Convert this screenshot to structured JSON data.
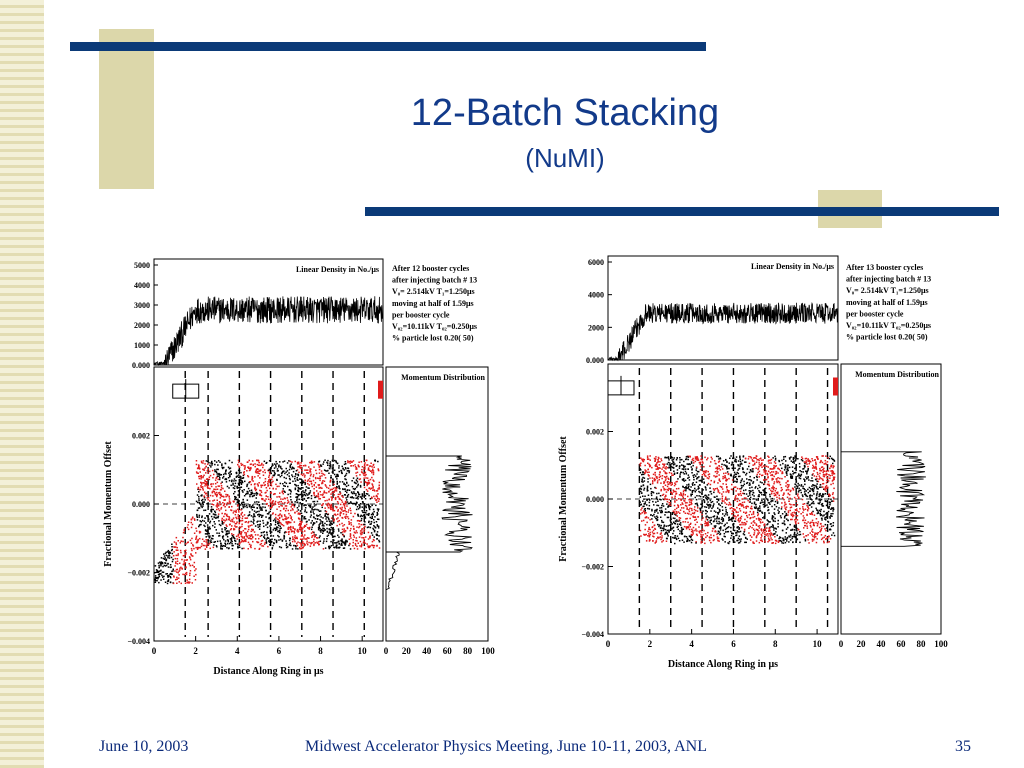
{
  "slide": {
    "title": "12-Batch Stacking",
    "subtitle": "(NuMI)",
    "footer_date": "June 10, 2003",
    "footer_event": "Midwest Accelerator Physics Meeting, June 10-11, 2003, ANL",
    "page_number": "35"
  },
  "colors": {
    "title": "#123a8a",
    "navy_bar": "#0b3a78",
    "accent_block": "#dcd7aa",
    "batch_red": "#e01b1b",
    "batch_black": "#000000"
  },
  "chart_data": [
    {
      "type": "scatter",
      "density_panel": {
        "label": "Linear Density in No./μs",
        "ylim": [
          0,
          5000
        ],
        "yticks": [
          "5000",
          "4000",
          "3000",
          "2000",
          "1000",
          "0.000"
        ],
        "profile": {
          "rise_start": 0.5,
          "rise_end": 2.0,
          "plateau": 2600,
          "noise": 800
        }
      },
      "info_text": [
        "After 12 booster cycles",
        "after injecting batch # 13",
        "V₀= 2.514kV  T₁=1.250μs",
        "moving at half of 1.59μs",
        "per booster cycle",
        "V₀₂=10.11kV  T₀₂=0.250μs",
        "% particle lost   0.20(   50)"
      ],
      "xlabel": "Distance Along Ring in μs",
      "ylabel": "Fractional Momentum Offset",
      "xlim": [
        0,
        11
      ],
      "ylim": [
        -0.004,
        0.004
      ],
      "xticks": [
        "0",
        "2",
        "4",
        "6",
        "8",
        "10"
      ],
      "yticks": [
        "0.002",
        "0.000",
        "−0.002",
        "−0.004"
      ],
      "dashed_lines_x": [
        1.5,
        2.6,
        4.1,
        5.6,
        7.1,
        8.6,
        10.1
      ],
      "scatter_region": {
        "x": [
          2.0,
          10.8
        ],
        "y_top": 0.0013,
        "y_bottom": -0.0013
      },
      "secondary_region": {
        "x": [
          0.0,
          2.0
        ],
        "y_top": -0.0004,
        "y_bottom": -0.0025
      },
      "distribution": {
        "title": "Momentum Distribution",
        "xticks": [
          "0",
          "20",
          "40",
          "60",
          "80",
          "100"
        ],
        "xlim": [
          0,
          100
        ],
        "main": {
          "y_top": 0.0014,
          "y_bottom": -0.0014,
          "level": 70
        },
        "tail": {
          "y_top": -0.0014,
          "y_bottom": -0.0025,
          "level": 10
        }
      }
    },
    {
      "type": "scatter",
      "density_panel": {
        "label": "Linear Density in No./μs",
        "ylim": [
          0,
          6000
        ],
        "yticks": [
          "6000",
          "4000",
          "2000",
          "0.000"
        ],
        "profile": {
          "rise_start": 0.5,
          "rise_end": 1.8,
          "plateau": 2700,
          "noise": 750
        }
      },
      "info_text": [
        "After 13 booster cycles",
        "after injecting batch # 13",
        "V₀= 2.514kV  T₁=1.250μs",
        "moving at half of 1.59μs",
        "per booster cycle",
        "V₀₂=10.11kV  T₀₂=0.250μs",
        "% particle lost   0.20(   50)"
      ],
      "xlabel": "Distance Along Ring in μs",
      "ylabel": "Fractional Momentum Offset",
      "xlim": [
        0,
        11
      ],
      "ylim": [
        -0.004,
        0.004
      ],
      "xticks": [
        "0",
        "2",
        "4",
        "6",
        "8",
        "10"
      ],
      "yticks": [
        "0.002",
        "0.000",
        "−0.002",
        "−0.004"
      ],
      "dashed_lines_x": [
        1.5,
        3.0,
        4.5,
        6.0,
        7.5,
        9.0,
        10.5
      ],
      "scatter_region": {
        "x": [
          1.5,
          10.8
        ],
        "y_top": 0.0013,
        "y_bottom": -0.0013
      },
      "secondary_region": null,
      "distribution": {
        "title": "Momentum Distribution",
        "xticks": [
          "0",
          "20",
          "40",
          "60",
          "80",
          "100"
        ],
        "xlim": [
          0,
          100
        ],
        "main": {
          "y_top": 0.0014,
          "y_bottom": -0.0014,
          "level": 70
        },
        "tail": null
      }
    }
  ]
}
